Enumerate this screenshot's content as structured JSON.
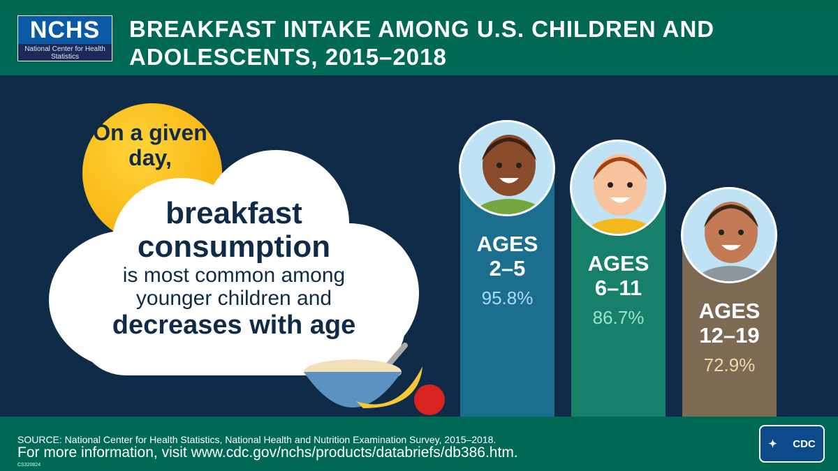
{
  "header": {
    "logo_main": "NCHS",
    "logo_sub": "National Center for Health Statistics",
    "title": "BREAKFAST INTAKE AMONG U.S. CHILDREN AND ADOLESCENTS, 2015–2018"
  },
  "callout": {
    "sun_text": "On a given day,",
    "line1": "breakfast consumption",
    "line2": "is most common among younger children and",
    "line3": "decreases with age"
  },
  "chart_data": {
    "type": "bar",
    "categories": [
      "AGES 2–5",
      "AGES 6–11",
      "AGES 12–19"
    ],
    "values": [
      95.8,
      86.7,
      72.9
    ],
    "labels": [
      "95.8%",
      "86.7%",
      "72.9%"
    ],
    "colors": [
      "#1b6e8e",
      "#16806b",
      "#7c6a55"
    ],
    "value_colors": [
      "#a9dcf2",
      "#9fe0c8",
      "#f5d6a8"
    ],
    "title": "",
    "xlabel": "",
    "ylabel": ""
  },
  "footer": {
    "source": "SOURCE: National Center for Health Statistics, National Health and Nutrition Examination Survey, 2015–2018.",
    "more": "For more information, visit www.cdc.gov/nchs/products/databriefs/db386.htm.",
    "code": "CS320824",
    "cdc_logo": "CDC"
  }
}
